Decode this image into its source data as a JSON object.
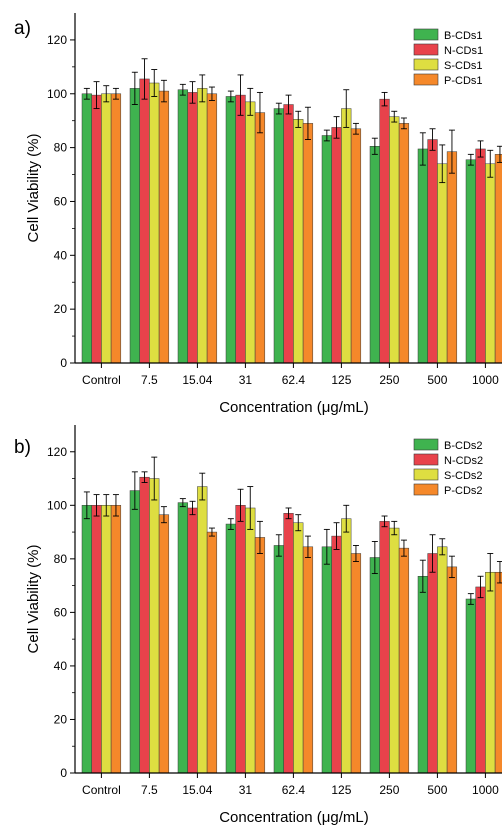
{
  "colors": {
    "series": [
      "#3fb34f",
      "#e8424b",
      "#dede41",
      "#f5882a"
    ],
    "bar_stroke": "#3a3a3a",
    "axis": "#000000"
  },
  "chart_data": [
    {
      "type": "bar",
      "panel_label": "a)",
      "xlabel": "Concentration (μg/mL)",
      "ylabel": "Cell Viability (%)",
      "ylim": [
        0,
        130
      ],
      "yticks": [
        0,
        20,
        40,
        60,
        80,
        100,
        120
      ],
      "categories": [
        "Control",
        "7.5",
        "15.04",
        "31",
        "62.4",
        "125",
        "250",
        "500",
        "1000"
      ],
      "legend_position": "top-right",
      "grid": false,
      "series": [
        {
          "name": "B-CDs1",
          "values": [
            100,
            102,
            101.5,
            99,
            94.5,
            84.5,
            80.5,
            79.5,
            75.5
          ],
          "errors": [
            2,
            6,
            2,
            2,
            2,
            2,
            3,
            6,
            2
          ]
        },
        {
          "name": "N-CDs1",
          "values": [
            99.5,
            105.5,
            100.5,
            99.5,
            96,
            87.5,
            98,
            83,
            79.5
          ],
          "errors": [
            5,
            7.5,
            4,
            7.5,
            3.5,
            4,
            2.5,
            4,
            3
          ]
        },
        {
          "name": "S-CDs1",
          "values": [
            100,
            104,
            102,
            97,
            90.5,
            94.5,
            91.5,
            74,
            74
          ],
          "errors": [
            3,
            5,
            5,
            5,
            3,
            7,
            2,
            7,
            5
          ]
        },
        {
          "name": "P-CDs1",
          "values": [
            100,
            101,
            100,
            93,
            89,
            87,
            89,
            78.5,
            77.5
          ],
          "errors": [
            2,
            4,
            2.5,
            7.5,
            6,
            2,
            2,
            8,
            3
          ]
        }
      ]
    },
    {
      "type": "bar",
      "panel_label": "b)",
      "xlabel": "Concentration (μg/mL)",
      "ylabel": "Cell Viability (%)",
      "ylim": [
        0,
        130
      ],
      "yticks": [
        0,
        20,
        40,
        60,
        80,
        100,
        120
      ],
      "categories": [
        "Control",
        "7.5",
        "15.04",
        "31",
        "62.4",
        "125",
        "250",
        "500",
        "1000"
      ],
      "legend_position": "top-right",
      "grid": false,
      "series": [
        {
          "name": "B-CDs2",
          "values": [
            100,
            105.5,
            101,
            93,
            85,
            84.5,
            80.5,
            73.5,
            65
          ],
          "errors": [
            5,
            7,
            1.5,
            2,
            4,
            6.5,
            6,
            6,
            2
          ]
        },
        {
          "name": "N-CDs2",
          "values": [
            100,
            110.5,
            99,
            100,
            97,
            88.5,
            94,
            82,
            69.5
          ],
          "errors": [
            4,
            2,
            2.5,
            6,
            2,
            5,
            2,
            7,
            4
          ]
        },
        {
          "name": "S-CDs2",
          "values": [
            100,
            110,
            107,
            99,
            93.5,
            95,
            91.5,
            84.5,
            75
          ],
          "errors": [
            4,
            8,
            5,
            8,
            3,
            5,
            2.5,
            3,
            7
          ]
        },
        {
          "name": "P-CDs2",
          "values": [
            100,
            96.5,
            90,
            88,
            84.5,
            82,
            84,
            77,
            75
          ],
          "errors": [
            4,
            3,
            1.5,
            6,
            4,
            3,
            3,
            4,
            4
          ]
        }
      ]
    }
  ]
}
